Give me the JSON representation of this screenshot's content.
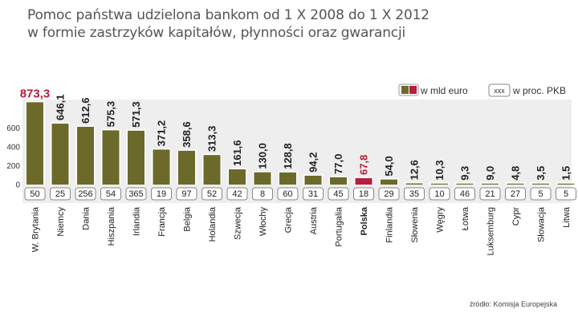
{
  "title_line1": "Pomoc państwa udzielona bankom od 1 X 2008 do 1 X 2012",
  "title_line2": "w formie zastrzyków kapitałów, płynności oraz gwarancji",
  "legend": {
    "mld_label": "w mld  euro",
    "pkb_box": "xxx",
    "pkb_label": "w proc. PKB"
  },
  "source": "źródło: Komisja Europejska",
  "colors": {
    "bar": "#6b6a2a",
    "highlight": "#b41f3c",
    "panel": "#eeeeee",
    "text": "#222222"
  },
  "chart_data": {
    "type": "bar",
    "categories": [
      "W. Brytania",
      "Niemcy",
      "Dania",
      "Hiszpania",
      "Irlandia",
      "Francja",
      "Belgia",
      "Holandia",
      "Szwecja",
      "Włochy",
      "Grecja",
      "Austria",
      "Portugalia",
      "Polska",
      "Finlandia",
      "Słowenia",
      "Węgry",
      "Łotwa",
      "Luksemburg",
      "Cypr",
      "Słowacja",
      "Litwa"
    ],
    "values": [
      873.3,
      646.1,
      612.6,
      575.3,
      571.3,
      371.2,
      358.6,
      313.3,
      161.6,
      130.0,
      128.8,
      94.2,
      77.0,
      67.8,
      54.0,
      12.6,
      10.3,
      9.3,
      9.0,
      4.8,
      3.5,
      1.5
    ],
    "value_labels": [
      "873,3",
      "646,1",
      "612,6",
      "575,3",
      "571,3",
      "371,2",
      "358,6",
      "313,3",
      "161,6",
      "130,0",
      "128,8",
      "94,2",
      "77,0",
      "67,8",
      "54,0",
      "12,6",
      "10,3",
      "9,3",
      "9,0",
      "4,8",
      "3,5",
      "1,5"
    ],
    "pkb_percent": [
      "50",
      "25",
      "256",
      "54",
      "365",
      "19",
      "97",
      "52",
      "42",
      "8",
      "60",
      "31",
      "45",
      "18",
      "29",
      "35",
      "10",
      "46",
      "21",
      "27",
      "5",
      "5"
    ],
    "highlight_index": [
      0,
      13
    ],
    "yticks": [
      0,
      200,
      400,
      600
    ],
    "ylim": [
      0,
      900
    ],
    "grid": false,
    "legend_position": "top-right"
  }
}
